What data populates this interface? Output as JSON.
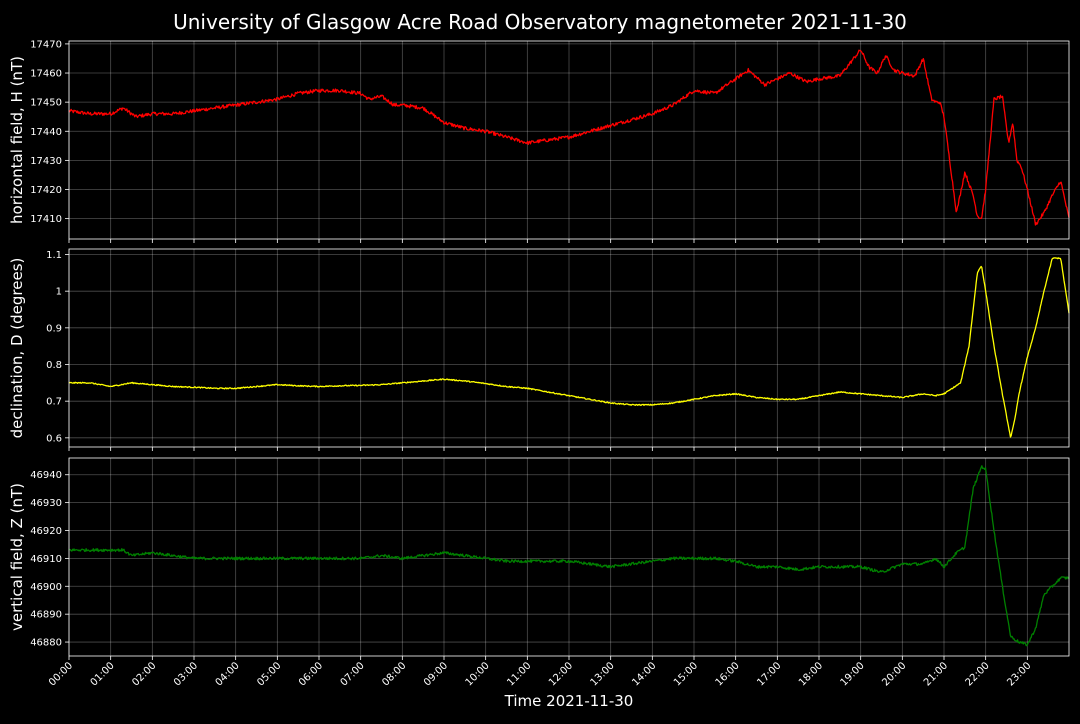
{
  "title": "University of Glasgow Acre Road Observatory magnetometer 2021-11-30",
  "xlabel": "Time 2021-11-30",
  "x_ticks": [
    "00:00",
    "01:00",
    "02:00",
    "03:00",
    "04:00",
    "05:00",
    "06:00",
    "07:00",
    "08:00",
    "09:00",
    "10:00",
    "11:00",
    "12:00",
    "13:00",
    "14:00",
    "15:00",
    "16:00",
    "17:00",
    "18:00",
    "19:00",
    "20:00",
    "21:00",
    "22:00",
    "23:00"
  ],
  "chart_data": [
    {
      "type": "line",
      "ylabel": "horizontal field, H (nT)",
      "color": "#ff0000",
      "xlim": [
        0,
        24
      ],
      "ylim": [
        17403,
        17471
      ],
      "yticks": [
        17410,
        17420,
        17430,
        17440,
        17450,
        17460,
        17470
      ],
      "grid": true,
      "noise": 0.6,
      "x": [
        0,
        0.5,
        1.0,
        1.3,
        1.6,
        2,
        2.5,
        3,
        3.5,
        4,
        4.5,
        5,
        5.5,
        6,
        6.5,
        7,
        7.2,
        7.5,
        7.8,
        8,
        8.5,
        9,
        9.5,
        10,
        10.5,
        11,
        11.5,
        12,
        12.5,
        13,
        13.5,
        14,
        14.5,
        15,
        15.5,
        16,
        16.3,
        16.7,
        17,
        17.3,
        17.7,
        18,
        18.5,
        19.0,
        19.2,
        19.4,
        19.6,
        19.8,
        20.0,
        20.3,
        20.5,
        20.7,
        20.8,
        20.9,
        21.0,
        21.3,
        21.5,
        21.7,
        21.8,
        21.9,
        22.0,
        22.2,
        22.4,
        22.55,
        22.65,
        22.75,
        22.85,
        23.0,
        23.2,
        23.4,
        23.6,
        23.8,
        24
      ],
      "y": [
        17447,
        17446,
        17446,
        17448,
        17445,
        17446,
        17446,
        17447,
        17448,
        17449,
        17450,
        17451,
        17453,
        17454,
        17454,
        17453,
        17451,
        17452,
        17449,
        17449,
        17448,
        17443,
        17441,
        17440,
        17438,
        17436,
        17437,
        17438,
        17440,
        17442,
        17444,
        17446,
        17449,
        17454,
        17453,
        17458,
        17461,
        17456,
        17458,
        17460,
        17457,
        17458,
        17459,
        17468,
        17462,
        17460,
        17466,
        17461,
        17460,
        17459,
        17465,
        17451,
        17450,
        17450,
        17445,
        17412,
        17426,
        17418,
        17411,
        17410,
        17420,
        17451,
        17452,
        17436,
        17443,
        17430,
        17428,
        17420,
        17408,
        17412,
        17418,
        17423,
        17410
      ]
    },
    {
      "type": "line",
      "ylabel": "declination, D (degrees)",
      "color": "#ffff00",
      "xlim": [
        0,
        24
      ],
      "ylim": [
        0.575,
        1.115
      ],
      "yticks": [
        0.6,
        0.7,
        0.8,
        0.9,
        1.0,
        1.1
      ],
      "grid": true,
      "noise": 0.0015,
      "x": [
        0,
        0.5,
        1,
        1.5,
        2,
        2.5,
        3,
        3.5,
        4,
        4.5,
        5,
        5.5,
        6,
        6.5,
        7,
        7.5,
        8,
        8.5,
        9,
        9.5,
        10,
        10.5,
        11,
        11.5,
        12,
        12.5,
        13,
        13.5,
        14,
        14.5,
        15,
        15.5,
        16,
        16.5,
        17,
        17.5,
        18,
        18.5,
        19,
        19.5,
        20,
        20.5,
        20.8,
        21,
        21.2,
        21.4,
        21.6,
        21.8,
        21.9,
        22.0,
        22.2,
        22.4,
        22.6,
        22.7,
        22.8,
        23.0,
        23.2,
        23.4,
        23.6,
        23.8,
        24
      ],
      "y": [
        0.75,
        0.75,
        0.74,
        0.75,
        0.745,
        0.74,
        0.738,
        0.735,
        0.735,
        0.74,
        0.745,
        0.742,
        0.74,
        0.742,
        0.743,
        0.745,
        0.75,
        0.755,
        0.76,
        0.755,
        0.748,
        0.74,
        0.735,
        0.725,
        0.715,
        0.705,
        0.695,
        0.69,
        0.69,
        0.695,
        0.705,
        0.715,
        0.72,
        0.71,
        0.705,
        0.705,
        0.715,
        0.725,
        0.72,
        0.715,
        0.71,
        0.72,
        0.715,
        0.72,
        0.735,
        0.75,
        0.85,
        1.05,
        1.07,
        1.0,
        0.85,
        0.72,
        0.6,
        0.65,
        0.72,
        0.82,
        0.9,
        1.0,
        1.09,
        1.09,
        0.94
      ]
    },
    {
      "type": "line",
      "ylabel": "vertical field, Z (nT)",
      "color": "#008000",
      "xlim": [
        0,
        24
      ],
      "ylim": [
        46875,
        46946
      ],
      "yticks": [
        46880,
        46890,
        46900,
        46910,
        46920,
        46930,
        46940
      ],
      "grid": true,
      "noise": 0.5,
      "x": [
        0,
        0.5,
        1,
        1.3,
        1.5,
        2,
        2.5,
        3,
        3.5,
        4,
        4.5,
        5,
        5.5,
        6,
        6.5,
        7,
        7.5,
        8,
        8.5,
        9,
        9.5,
        10,
        10.5,
        11,
        11.5,
        12,
        12.5,
        13,
        13.5,
        14,
        14.5,
        15,
        15.5,
        16,
        16.5,
        17,
        17.5,
        18,
        18.5,
        19,
        19.5,
        20,
        20.5,
        20.8,
        21,
        21.3,
        21.5,
        21.7,
        21.9,
        22.0,
        22.2,
        22.4,
        22.6,
        22.8,
        23,
        23.2,
        23.4,
        23.6,
        23.8,
        24
      ],
      "y": [
        46913,
        46913,
        46913,
        46913,
        46911,
        46912,
        46911,
        46910,
        46910,
        46910,
        46910,
        46910,
        46910,
        46910,
        46910,
        46910,
        46911,
        46910,
        46911,
        46912,
        46911,
        46910,
        46909,
        46909,
        46909,
        46909,
        46908,
        46907,
        46908,
        46909,
        46910,
        46910,
        46910,
        46909,
        46907,
        46907,
        46906,
        46907,
        46907,
        46907,
        46905,
        46908,
        46908,
        46910,
        46907,
        46912,
        46914,
        46935,
        46943,
        46942,
        46920,
        46900,
        46882,
        46880,
        46879,
        46885,
        46897,
        46900,
        46903,
        46903
      ]
    }
  ]
}
